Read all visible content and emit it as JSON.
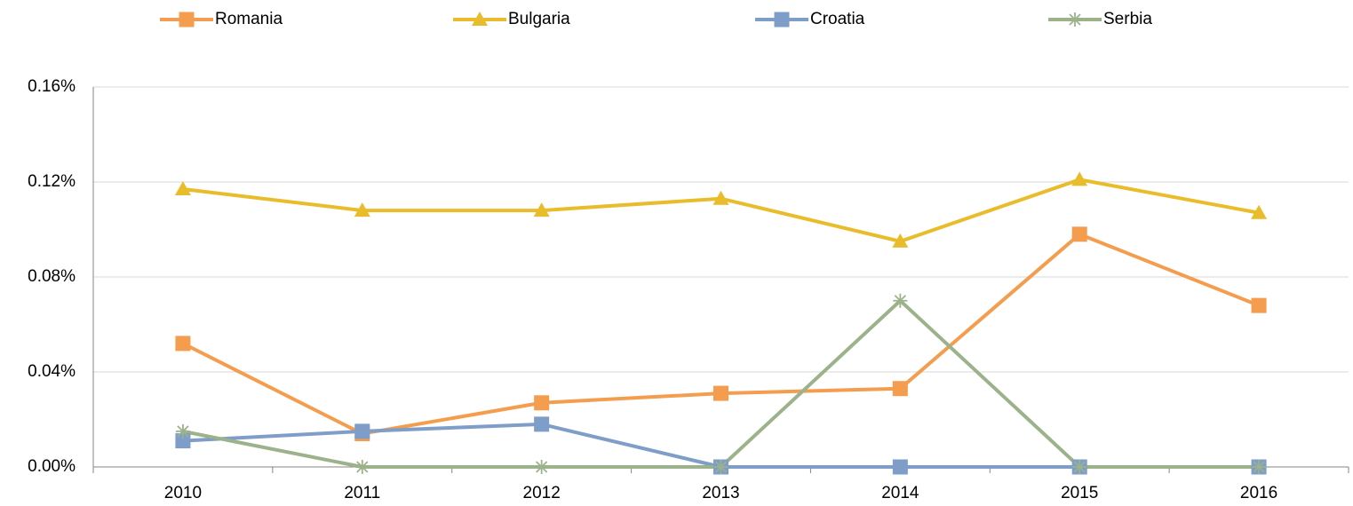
{
  "chart_data": {
    "type": "line",
    "categories": [
      "2010",
      "2011",
      "2012",
      "2013",
      "2014",
      "2015",
      "2016"
    ],
    "series": [
      {
        "name": "Romania",
        "color": "#f59d4e",
        "marker": "square",
        "values": [
          0.052,
          0.014,
          0.027,
          0.031,
          0.033,
          0.098,
          0.068
        ]
      },
      {
        "name": "Bulgaria",
        "color": "#e8bc2b",
        "marker": "triangle",
        "values": [
          0.117,
          0.108,
          0.108,
          0.113,
          0.095,
          0.121,
          0.107
        ]
      },
      {
        "name": "Croatia",
        "color": "#7e9dc8",
        "marker": "square",
        "values": [
          0.011,
          0.015,
          0.018,
          0,
          0,
          0,
          0
        ]
      },
      {
        "name": "Serbia",
        "color": "#9bb28a",
        "marker": "star",
        "values": [
          0.015,
          0,
          0,
          0,
          0.07,
          0,
          0
        ]
      }
    ],
    "ylim": [
      0,
      0.16
    ],
    "yticks": [
      {
        "value": 0,
        "label": "0.00%"
      },
      {
        "value": 0.04,
        "label": "0.04%"
      },
      {
        "value": 0.08,
        "label": "0.08%"
      },
      {
        "value": 0.12,
        "label": "0.12%"
      },
      {
        "value": 0.16,
        "label": "0.16%"
      }
    ],
    "grid": true,
    "legend": "top"
  }
}
